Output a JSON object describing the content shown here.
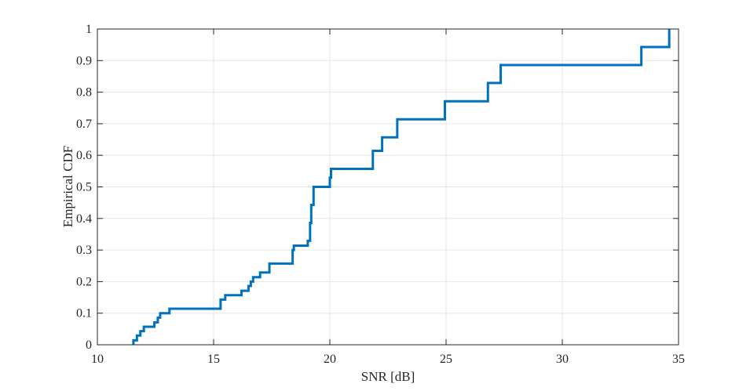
{
  "chart_data": {
    "type": "line",
    "line_style": "stairs",
    "title": "",
    "xlabel": "SNR [dB]",
    "ylabel": "Empirical CDF",
    "xlim": [
      10,
      35
    ],
    "ylim": [
      0,
      1
    ],
    "grid": true,
    "x_ticks": [
      10,
      15,
      20,
      25,
      30,
      35
    ],
    "y_ticks": [
      0,
      0.1,
      0.2,
      0.3,
      0.4,
      0.5,
      0.6,
      0.7,
      0.8,
      0.9,
      1
    ],
    "x_tick_labels": [
      "10",
      "15",
      "20",
      "25",
      "30",
      "35"
    ],
    "y_tick_labels": [
      "0",
      "0.1",
      "0.2",
      "0.3",
      "0.4",
      "0.5",
      "0.6",
      "0.7",
      "0.8",
      "0.9",
      "1"
    ],
    "series": [
      {
        "color": "#0072BD",
        "x": [
          11.55,
          11.55,
          11.7,
          11.85,
          12.0,
          12.45,
          12.6,
          12.7,
          13.1,
          15.3,
          15.5,
          16.2,
          16.5,
          16.6,
          16.7,
          17.0,
          17.4,
          18.4,
          18.45,
          19.05,
          19.15,
          19.2,
          19.3,
          20.0,
          20.05,
          21.85,
          22.25,
          22.9,
          24.95,
          26.8,
          27.35,
          33.4,
          34.6,
          34.6
        ],
        "y": [
          0.0,
          0.014,
          0.029,
          0.043,
          0.057,
          0.071,
          0.086,
          0.1,
          0.114,
          0.143,
          0.157,
          0.171,
          0.186,
          0.2,
          0.214,
          0.229,
          0.257,
          0.3,
          0.314,
          0.329,
          0.386,
          0.443,
          0.5,
          0.529,
          0.557,
          0.614,
          0.657,
          0.714,
          0.771,
          0.829,
          0.886,
          0.943,
          0.943,
          1.0
        ]
      }
    ]
  }
}
